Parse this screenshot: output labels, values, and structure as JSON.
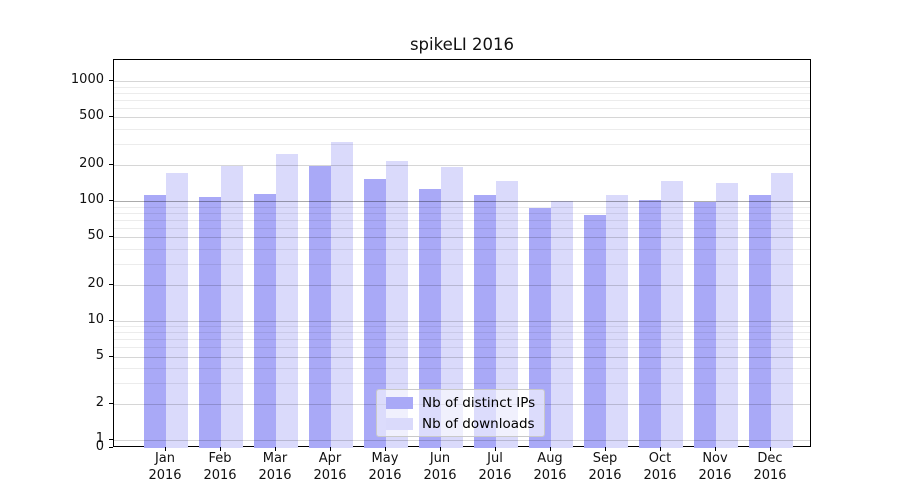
{
  "chart_data": {
    "type": "bar",
    "title": "spikeLI 2016",
    "categories": [
      "Jan 2016",
      "Feb 2016",
      "Mar 2016",
      "Apr 2016",
      "May 2016",
      "Jun 2016",
      "Jul 2016",
      "Aug 2016",
      "Sep 2016",
      "Oct 2016",
      "Nov 2016",
      "Dec 2016"
    ],
    "series": [
      {
        "name": "Nb of distinct IPs",
        "color": "#a9a9f7",
        "values": [
          113,
          107,
          114,
          196,
          152,
          127,
          112,
          87,
          77,
          101,
          98,
          112
        ]
      },
      {
        "name": "Nb of downloads",
        "color": "#dadafb",
        "values": [
          173,
          197,
          245,
          310,
          218,
          192,
          147,
          100,
          112,
          146,
          142,
          171
        ]
      }
    ],
    "xlabel": "",
    "ylabel": "",
    "yscale": "symlog",
    "ylim": [
      0,
      1500
    ],
    "y_ticks": [
      0,
      1,
      2,
      5,
      10,
      20,
      50,
      100,
      200,
      500,
      1000
    ],
    "y_tick_labels": [
      "0",
      "1",
      "2",
      "5",
      "10",
      "20",
      "50",
      "100",
      "200",
      "500",
      "1000"
    ],
    "grid": true,
    "legend_position": "lower center"
  },
  "colors": {
    "grid_minor": "#ececec",
    "grid_major": "#d6d6d6",
    "grid_emphasis_100": "#adadad",
    "axis": "#000000",
    "background": "#ffffff"
  }
}
